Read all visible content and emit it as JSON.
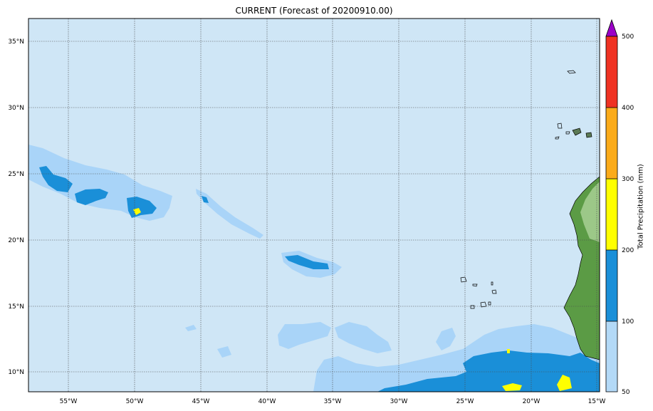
{
  "title": "CURRENT (Forecast of 20200910.00)",
  "lat_ticks": [
    "35°N",
    "30°N",
    "25°N",
    "20°N",
    "15°N",
    "10°N"
  ],
  "lon_ticks": [
    "55°W",
    "50°W",
    "45°W",
    "40°W",
    "35°W",
    "30°W",
    "25°W",
    "20°W",
    "15°W"
  ],
  "colorbar": {
    "label": "Total Precipitation (mm)",
    "ticks": [
      "500",
      "400",
      "300",
      "200",
      "100",
      "50"
    ],
    "bands": [
      {
        "from": 50,
        "to": 100,
        "color": "#b3d9f7"
      },
      {
        "from": 100,
        "to": 200,
        "color": "#1a8fd8"
      },
      {
        "from": 200,
        "to": 300,
        "color": "#ffff00"
      },
      {
        "from": 300,
        "to": 400,
        "color": "#fbab1a"
      },
      {
        "from": 400,
        "to": 500,
        "color": "#ef3222"
      },
      {
        "from": 500,
        "to": "max",
        "color": "#9b00c8",
        "shape": "triangle-extension"
      }
    ]
  },
  "colors": {
    "ocean": "#cfe6f6",
    "light_precip": "#a9d4f8",
    "medium_precip": "#1a8fd8",
    "heavy_precip": "#ffff00",
    "land": "#5b9b45"
  }
}
